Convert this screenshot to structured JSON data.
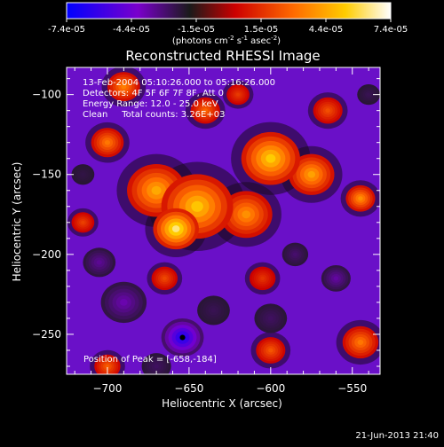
{
  "colorbar": {
    "tick_labels": [
      "-7.4e-05",
      "-4.4e-05",
      "-1.5e-05",
      "1.5e-05",
      "4.4e-05",
      "7.4e-05"
    ],
    "unit_label": "(photons cm",
    "unit_exp1": "-2",
    "unit_mid": " s",
    "unit_exp2": "-1",
    "unit_end": " asec",
    "unit_exp3": "-2",
    "unit_close": ")"
  },
  "chart_data": {
    "type": "heatmap",
    "title": "Reconstructed RHESSI Image",
    "xlabel": "Heliocentric X (arcsec)",
    "ylabel": "Heliocentric Y (arcsec)",
    "xlim": [
      -725,
      -533
    ],
    "ylim": [
      -275,
      -83
    ],
    "x_ticks": [
      -700,
      -650,
      -600,
      -550
    ],
    "y_ticks": [
      -100,
      -150,
      -200,
      -250
    ],
    "x_tick_labels": [
      "−700",
      "−650",
      "−600",
      "−550"
    ],
    "y_tick_labels": [
      "−100",
      "−150",
      "−200",
      "−250"
    ],
    "value_range": [
      -7.4e-05,
      7.4e-05
    ],
    "colormap": [
      "#0000ff",
      "#7a00cc",
      "#1a1a1a",
      "#cc0000",
      "#ff6a00",
      "#ffcc00",
      "#ffffff"
    ],
    "annotations": [
      "13-Feb-2004 05:10:26.000 to 05:16:26.000",
      "Detectors: 4F 5F 6F 7F 8F, Att 0",
      "Energy Range: 12.0 - 25.0 keV",
      "Clean     Total counts: 3.26E+03"
    ],
    "peak_label": "Position of Peak = [-658,-184]",
    "marker_point": [
      -654,
      -252
    ],
    "emission_sources": [
      {
        "x": -645,
        "y": -170,
        "value": 6e-05,
        "width": 22
      },
      {
        "x": -670,
        "y": -160,
        "value": 5.2e-05,
        "width": 18
      },
      {
        "x": -658,
        "y": -184,
        "value": 7.4e-05,
        "width": 14
      },
      {
        "x": -600,
        "y": -140,
        "value": 6.2e-05,
        "width": 18
      },
      {
        "x": -575,
        "y": -150,
        "value": 5e-05,
        "width": 14
      },
      {
        "x": -615,
        "y": -175,
        "value": 4.5e-05,
        "width": 16
      },
      {
        "x": -700,
        "y": -130,
        "value": 3.8e-05,
        "width": 10
      },
      {
        "x": -690,
        "y": -95,
        "value": 4e-05,
        "width": 10
      },
      {
        "x": -640,
        "y": -110,
        "value": 3.2e-05,
        "width": 9
      },
      {
        "x": -545,
        "y": -165,
        "value": 4.5e-05,
        "width": 9
      },
      {
        "x": -545,
        "y": -255,
        "value": 3.8e-05,
        "width": 11
      },
      {
        "x": -600,
        "y": -260,
        "value": 2.8e-05,
        "width": 9
      },
      {
        "x": -605,
        "y": -215,
        "value": 1.8e-05,
        "width": 8
      },
      {
        "x": -700,
        "y": -270,
        "value": 3e-05,
        "width": 8
      },
      {
        "x": -715,
        "y": -180,
        "value": 2.2e-05,
        "width": 7
      },
      {
        "x": -665,
        "y": -215,
        "value": 2.4e-05,
        "width": 8
      },
      {
        "x": -565,
        "y": -110,
        "value": 2.6e-05,
        "width": 9
      },
      {
        "x": -620,
        "y": -100,
        "value": 2e-05,
        "width": 7
      }
    ],
    "negative_sources": [
      {
        "x": -654,
        "y": -252,
        "value": -7.4e-05,
        "width": 13
      },
      {
        "x": -690,
        "y": -230,
        "value": -4e-05,
        "width": 14
      },
      {
        "x": -705,
        "y": -205,
        "value": -3.6e-05,
        "width": 10
      },
      {
        "x": -560,
        "y": -215,
        "value": -3.8e-05,
        "width": 9
      },
      {
        "x": -585,
        "y": -200,
        "value": -3e-05,
        "width": 8
      },
      {
        "x": -600,
        "y": -240,
        "value": -2.8e-05,
        "width": 10
      },
      {
        "x": -635,
        "y": -235,
        "value": -2.6e-05,
        "width": 10
      },
      {
        "x": -715,
        "y": -150,
        "value": -2.4e-05,
        "width": 7
      },
      {
        "x": -540,
        "y": -100,
        "value": -2.6e-05,
        "width": 7
      },
      {
        "x": -670,
        "y": -270,
        "value": -2.8e-05,
        "width": 9
      }
    ]
  },
  "footer": {
    "timestamp": "21-Jun-2013 21:40"
  }
}
